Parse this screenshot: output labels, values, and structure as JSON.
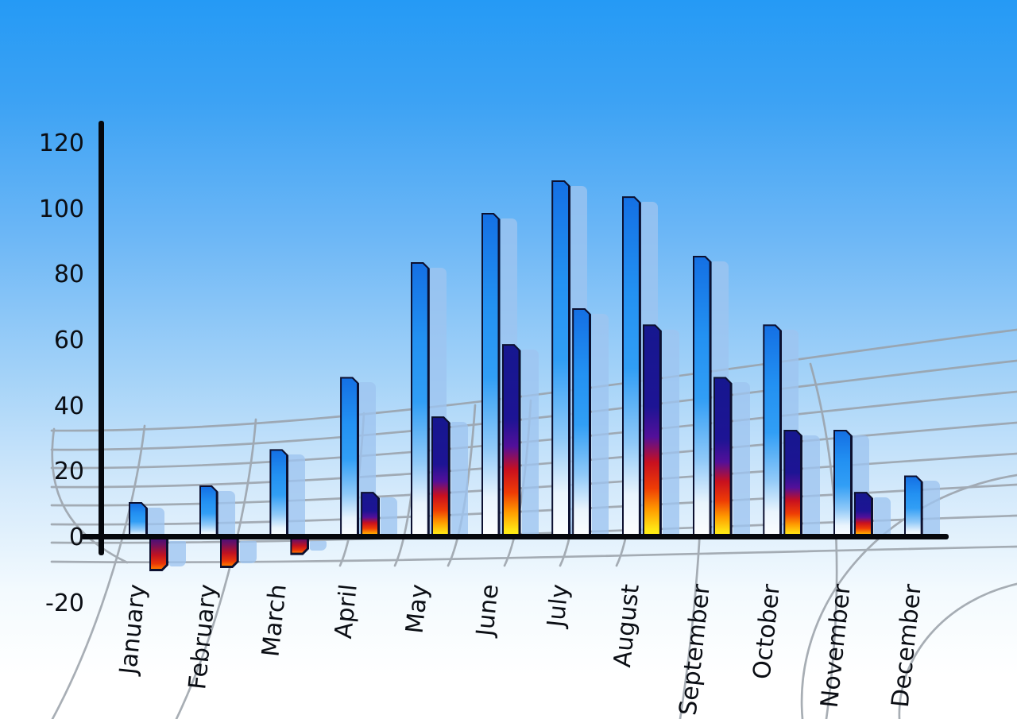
{
  "chart_data": {
    "type": "bar",
    "title": "",
    "xlabel": "",
    "ylabel": "",
    "categories": [
      "January",
      "February",
      "March",
      "April",
      "May",
      "June",
      "July",
      "August",
      "September",
      "October",
      "November",
      "December"
    ],
    "series": [
      {
        "name": "primary-blue-bars",
        "values": [
          11,
          16,
          27,
          49,
          84,
          99,
          109,
          104,
          86,
          65,
          33,
          19
        ]
      },
      {
        "name": "secondary-rainbow-bars",
        "values": [
          -10,
          -9,
          -5,
          14,
          37,
          59,
          70,
          65,
          49,
          33,
          14,
          null
        ]
      }
    ],
    "y_ticks": [
      "120",
      "100",
      "80",
      "60",
      "40",
      "20",
      "0",
      "-20"
    ],
    "ylim": [
      -20,
      120
    ],
    "legend": "none",
    "grid": "curved gray perspective floor grid behind bars",
    "secondary_style_exceptions": {
      "July": "blue-gradient",
      "December": "absent"
    },
    "colors": {
      "primary_bar_top": "#1470e4",
      "primary_bar_bottom": "#ffffff",
      "secondary_bar_gradient": [
        "#16178f",
        "#c8101f",
        "#ff9b00",
        "#fff714"
      ],
      "negative_bar_gradient": [
        "#2c118a",
        "#c11220",
        "#ff7800"
      ],
      "bar_outline": "#0c1030",
      "bar_shadow": "#9ec4f0",
      "axis": "#05070c",
      "grid_line": "#99a0a8",
      "sky_top": "#259af5",
      "sky_bottom": "#ffffff",
      "label_text": "#0b0e14"
    }
  }
}
